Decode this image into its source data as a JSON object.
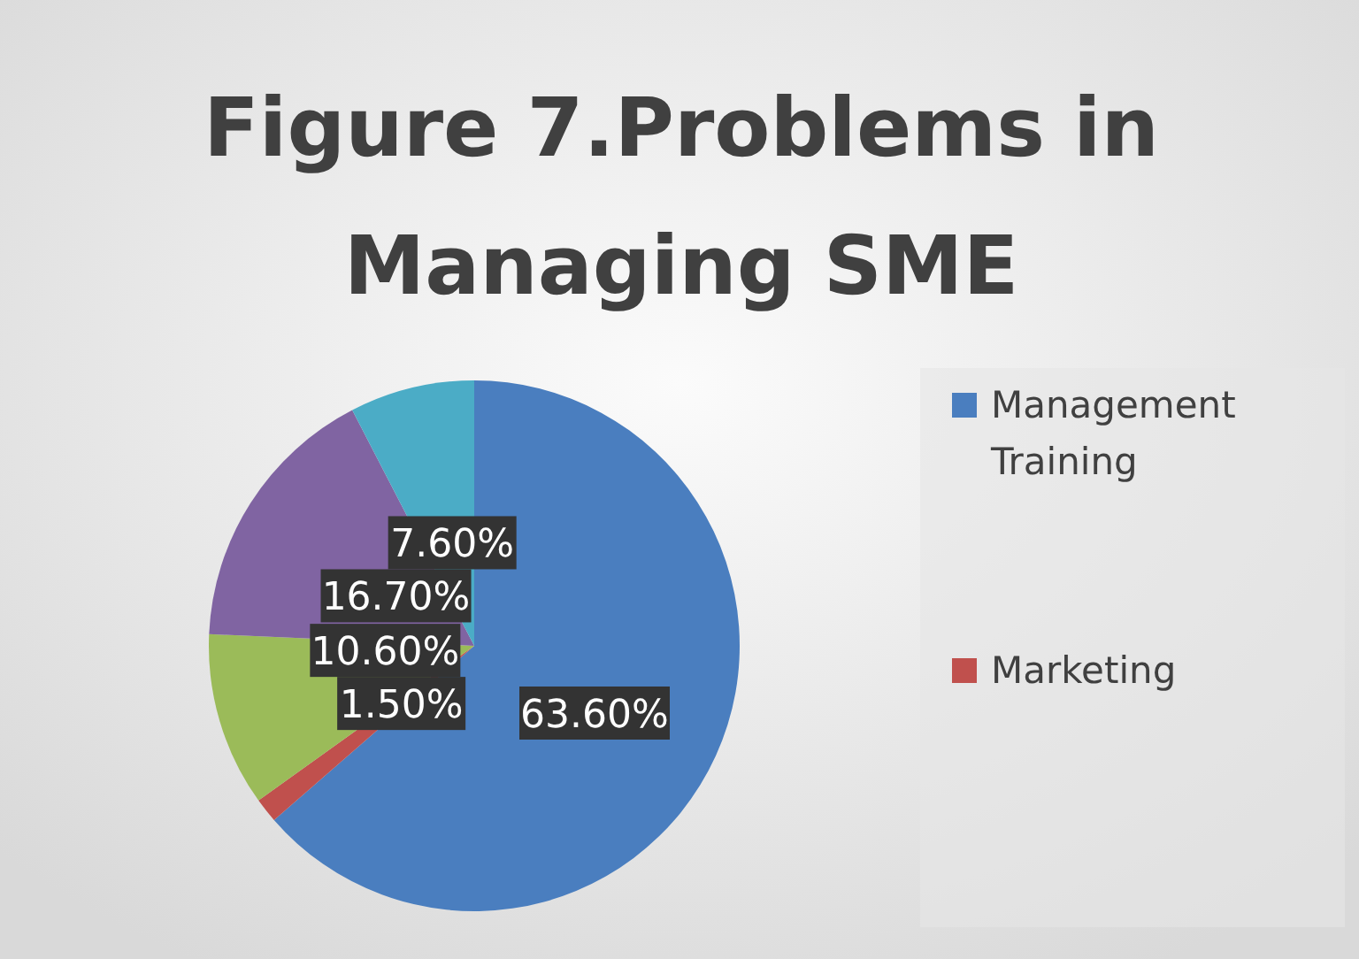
{
  "chart_data": {
    "type": "pie",
    "title": "Figure 7.Problems in Managing SME",
    "categories": [
      "Management Training",
      "Marketing",
      null,
      null,
      null
    ],
    "values": [
      63.6,
      1.5,
      10.6,
      16.7,
      7.6
    ],
    "colors": [
      "#4a7ebf",
      "#c0504d",
      "#9bbb59",
      "#8064a2",
      "#4bacc6"
    ],
    "value_labels": [
      "63.60%",
      "1.50%",
      "10.60%",
      "16.70%",
      "7.60%"
    ],
    "legend": "right"
  }
}
